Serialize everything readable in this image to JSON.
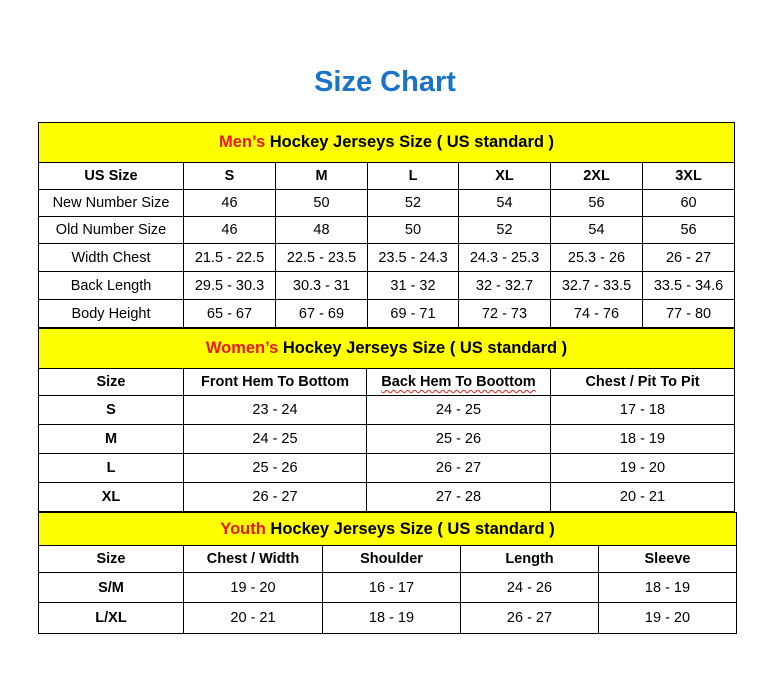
{
  "title": "Size Chart",
  "colors": {
    "title": "#1a73c7",
    "header_bg": "#ffff00",
    "accent": "#e8181d"
  },
  "mens": {
    "accent": "Men’s",
    "heading": " Hockey Jerseys Size ( US standard )",
    "columns": [
      "US Size",
      "S",
      "M",
      "L",
      "XL",
      "2XL",
      "3XL"
    ],
    "rows": [
      [
        "New Number Size",
        "46",
        "50",
        "52",
        "54",
        "56",
        "60"
      ],
      [
        "Old Number Size",
        "46",
        "48",
        "50",
        "52",
        "54",
        "56"
      ],
      [
        "Width Chest",
        "21.5 - 22.5",
        "22.5 - 23.5",
        "23.5 - 24.3",
        "24.3 - 25.3",
        "25.3 - 26",
        "26 - 27"
      ],
      [
        "Back Length",
        "29.5 - 30.3",
        "30.3 - 31",
        "31 - 32",
        "32 - 32.7",
        "32.7 - 33.5",
        "33.5 - 34.6"
      ],
      [
        "Body Height",
        "65 - 67",
        "67 - 69",
        "69 - 71",
        "72 - 73",
        "74 - 76",
        "77 - 80"
      ]
    ]
  },
  "womens": {
    "accent": "Women’s",
    "heading": " Hockey Jerseys Size ( US standard )",
    "columns": [
      "Size",
      "Front Hem To Bottom",
      "Back Hem To Boottom",
      "Chest / Pit To Pit"
    ],
    "rows": [
      [
        "S",
        "23 - 24",
        "24 - 25",
        "17 - 18"
      ],
      [
        "M",
        "24 - 25",
        "25 - 26",
        "18 - 19"
      ],
      [
        "L",
        "25 - 26",
        "26 - 27",
        "19 - 20"
      ],
      [
        "XL",
        "26 - 27",
        "27 - 28",
        "20 - 21"
      ]
    ]
  },
  "youth": {
    "accent": "Youth",
    "heading": " Hockey Jerseys Size ( US standard )",
    "columns": [
      "Size",
      "Chest / Width",
      "Shoulder",
      "Length",
      "Sleeve"
    ],
    "rows": [
      [
        "S/M",
        "19 - 20",
        "16 - 17",
        "24 - 26",
        "18 - 19"
      ],
      [
        "L/XL",
        "20 - 21",
        "18 - 19",
        "26 - 27",
        "19 - 20"
      ]
    ]
  }
}
